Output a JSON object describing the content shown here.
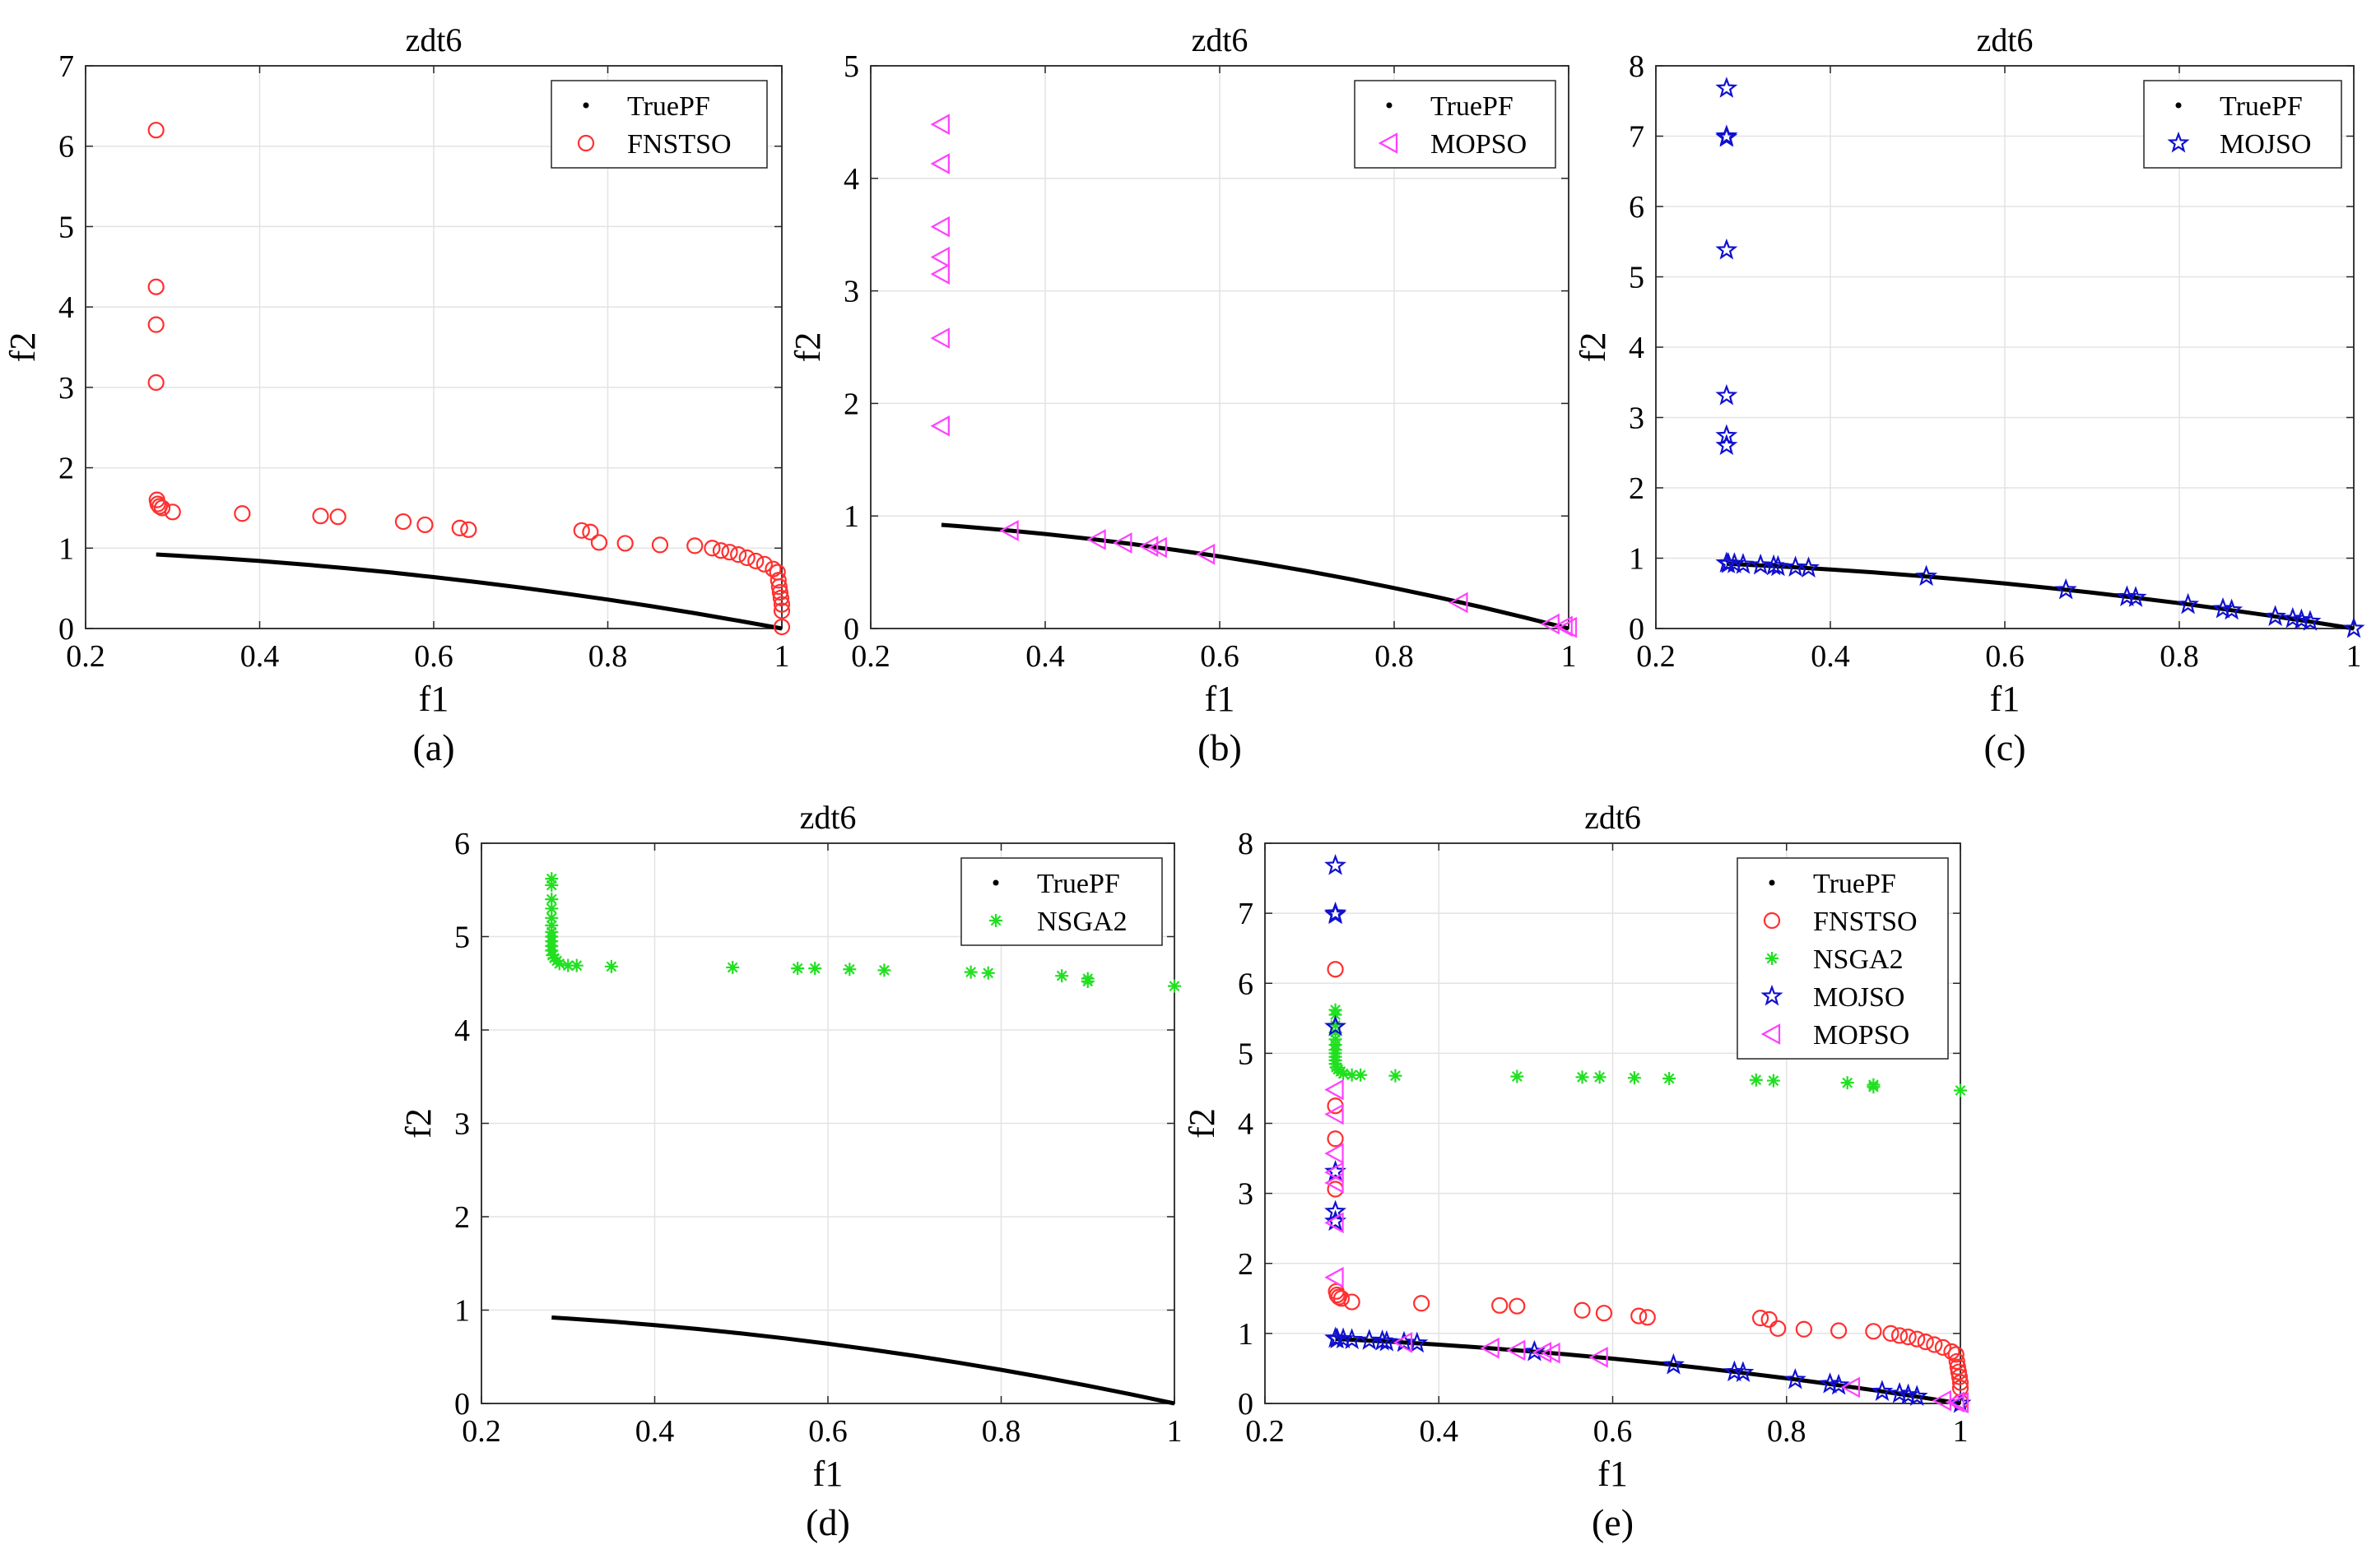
{
  "chart_data": [
    {
      "type": "scatter",
      "panel_label": "(a)",
      "title": "zdt6",
      "xlabel": "f1",
      "ylabel": "f2",
      "xlim": [
        0.2,
        1
      ],
      "ylim": [
        0,
        7
      ],
      "xticks": [
        "0.2",
        "0.4",
        "0.6",
        "0.8",
        "1"
      ],
      "yticks": [
        "0",
        "1",
        "2",
        "3",
        "4",
        "5",
        "6",
        "7"
      ],
      "grid": true,
      "legend_position": "top-right",
      "legend": [
        "TruePF",
        "FNSTSO"
      ],
      "series": [
        "FNSTSO"
      ]
    },
    {
      "type": "scatter",
      "panel_label": "(b)",
      "title": "zdt6",
      "xlabel": "f1",
      "ylabel": "f2",
      "xlim": [
        0.2,
        1
      ],
      "ylim": [
        0,
        5
      ],
      "xticks": [
        "0.2",
        "0.4",
        "0.6",
        "0.8",
        "1"
      ],
      "yticks": [
        "0",
        "1",
        "2",
        "3",
        "4",
        "5"
      ],
      "grid": true,
      "legend_position": "top-right",
      "legend": [
        "TruePF",
        "MOPSO"
      ],
      "series": [
        "MOPSO"
      ]
    },
    {
      "type": "scatter",
      "panel_label": "(c)",
      "title": "zdt6",
      "xlabel": "f1",
      "ylabel": "f2",
      "xlim": [
        0.2,
        1
      ],
      "ylim": [
        0,
        8
      ],
      "xticks": [
        "0.2",
        "0.4",
        "0.6",
        "0.8",
        "1"
      ],
      "yticks": [
        "0",
        "1",
        "2",
        "3",
        "4",
        "5",
        "6",
        "7",
        "8"
      ],
      "grid": true,
      "legend_position": "top-right",
      "legend": [
        "TruePF",
        "MOJSO"
      ],
      "series": [
        "MOJSO"
      ]
    },
    {
      "type": "scatter",
      "panel_label": "(d)",
      "title": "zdt6",
      "xlabel": "f1",
      "ylabel": "f2",
      "xlim": [
        0.2,
        1
      ],
      "ylim": [
        0,
        6
      ],
      "xticks": [
        "0.2",
        "0.4",
        "0.6",
        "0.8",
        "1"
      ],
      "yticks": [
        "0",
        "1",
        "2",
        "3",
        "4",
        "5",
        "6"
      ],
      "grid": true,
      "legend_position": "top-right",
      "legend": [
        "TruePF",
        "NSGA2"
      ],
      "series": [
        "NSGA2"
      ]
    },
    {
      "type": "scatter",
      "panel_label": "(e)",
      "title": "zdt6",
      "xlabel": "f1",
      "ylabel": "f2",
      "xlim": [
        0.2,
        1
      ],
      "ylim": [
        0,
        8
      ],
      "xticks": [
        "0.2",
        "0.4",
        "0.6",
        "0.8",
        "1"
      ],
      "yticks": [
        "0",
        "1",
        "2",
        "3",
        "4",
        "5",
        "6",
        "7",
        "8"
      ],
      "grid": true,
      "legend_position": "top-right",
      "legend": [
        "TruePF",
        "FNSTSO",
        "NSGA2",
        "MOJSO",
        "MOPSO"
      ],
      "series": [
        "FNSTSO",
        "NSGA2",
        "MOJSO",
        "MOPSO"
      ]
    }
  ],
  "series_data": {
    "TruePF": {
      "marker": "dot",
      "color": "#000000",
      "x": [
        0.281,
        0.3,
        0.35,
        0.4,
        0.45,
        0.5,
        0.55,
        0.6,
        0.65,
        0.7,
        0.75,
        0.8,
        0.85,
        0.9,
        0.95,
        1.0
      ],
      "y": [
        0.921,
        0.91,
        0.8775,
        0.84,
        0.7975,
        0.75,
        0.6975,
        0.64,
        0.5775,
        0.51,
        0.4375,
        0.36,
        0.2775,
        0.19,
        0.0975,
        0.0
      ]
    },
    "FNSTSO": {
      "marker": "circle",
      "color": "#ff3030",
      "x": [
        0.281,
        0.281,
        0.281,
        0.281,
        0.282,
        0.283,
        0.285,
        0.288,
        0.3,
        0.38,
        0.47,
        0.49,
        0.565,
        0.59,
        0.63,
        0.64,
        0.77,
        0.78,
        0.79,
        0.82,
        0.86,
        0.9,
        0.92,
        0.93,
        0.94,
        0.95,
        0.96,
        0.97,
        0.98,
        0.99,
        0.995,
        0.996,
        0.997,
        0.998,
        0.999,
        1.0,
        1.0,
        1.0
      ],
      "y": [
        6.2,
        4.25,
        3.78,
        3.06,
        1.6,
        1.55,
        1.52,
        1.5,
        1.45,
        1.43,
        1.4,
        1.39,
        1.33,
        1.29,
        1.25,
        1.23,
        1.22,
        1.2,
        1.07,
        1.06,
        1.04,
        1.03,
        1.0,
        0.97,
        0.95,
        0.92,
        0.88,
        0.84,
        0.8,
        0.74,
        0.7,
        0.6,
        0.52,
        0.45,
        0.38,
        0.3,
        0.22,
        0.02
      ]
    },
    "MOPSO": {
      "marker": "triangle-left",
      "color": "#ff40ff",
      "x": [
        0.281,
        0.281,
        0.281,
        0.281,
        0.281,
        0.281,
        0.281,
        0.36,
        0.46,
        0.49,
        0.52,
        0.53,
        0.585,
        0.875,
        0.98,
        0.995,
        1.0
      ],
      "y": [
        4.48,
        4.13,
        3.57,
        3.3,
        3.15,
        2.58,
        1.8,
        0.87,
        0.79,
        0.76,
        0.73,
        0.72,
        0.66,
        0.23,
        0.04,
        0.02,
        0.01
      ]
    },
    "MOJSO": {
      "marker": "star",
      "color": "#1010d0",
      "x": [
        0.281,
        0.281,
        0.281,
        0.281,
        0.281,
        0.281,
        0.281,
        0.281,
        0.283,
        0.29,
        0.3,
        0.32,
        0.335,
        0.34,
        0.36,
        0.375,
        0.51,
        0.67,
        0.74,
        0.75,
        0.81,
        0.85,
        0.86,
        0.91,
        0.93,
        0.94,
        0.95,
        1.0
      ],
      "y": [
        7.68,
        7.0,
        6.98,
        5.38,
        3.31,
        2.74,
        2.6,
        0.93,
        0.92,
        0.92,
        0.91,
        0.9,
        0.89,
        0.88,
        0.87,
        0.86,
        0.74,
        0.55,
        0.45,
        0.44,
        0.34,
        0.28,
        0.26,
        0.17,
        0.14,
        0.12,
        0.1,
        0.0
      ]
    },
    "NSGA2": {
      "marker": "asterisk",
      "color": "#20e020",
      "x": [
        0.281,
        0.281,
        0.281,
        0.281,
        0.281,
        0.281,
        0.281,
        0.281,
        0.281,
        0.281,
        0.281,
        0.282,
        0.284,
        0.287,
        0.29,
        0.3,
        0.31,
        0.35,
        0.49,
        0.565,
        0.585,
        0.625,
        0.665,
        0.765,
        0.785,
        0.87,
        0.9,
        0.9,
        1.0
      ],
      "y": [
        5.62,
        5.55,
        5.4,
        5.3,
        5.2,
        5.12,
        5.05,
        5.0,
        4.95,
        4.9,
        4.85,
        4.8,
        4.77,
        4.74,
        4.71,
        4.69,
        4.69,
        4.68,
        4.67,
        4.66,
        4.66,
        4.65,
        4.64,
        4.62,
        4.61,
        4.58,
        4.55,
        4.52,
        4.47
      ]
    }
  }
}
